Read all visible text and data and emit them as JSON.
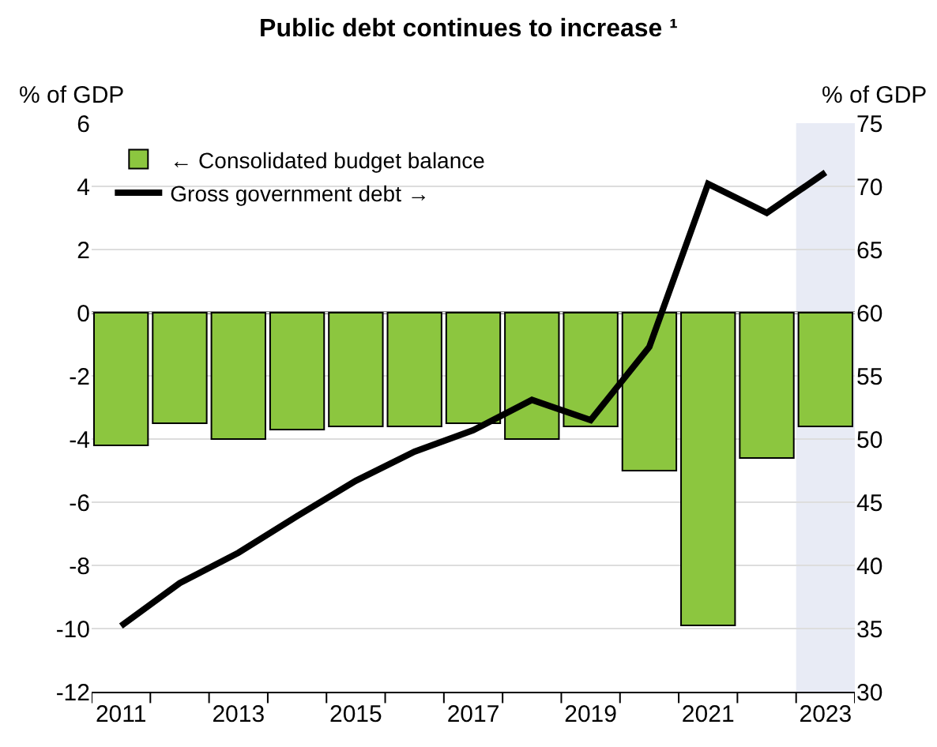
{
  "chart_data": {
    "type": "bar",
    "title": "Public debt continues to increase ¹",
    "ylabel": "% of GDP",
    "y2label": "% of GDP",
    "categories": [
      "2011",
      null,
      "2013",
      null,
      "2015",
      null,
      "2017",
      null,
      "2019",
      null,
      "2021",
      null,
      "2023"
    ],
    "series": [
      {
        "name": "← Consolidated budget balance",
        "color": "#8cc63f",
        "values": [
          -4.2,
          -3.5,
          -4.0,
          -3.7,
          -3.6,
          -3.6,
          -3.5,
          -4.0,
          -3.6,
          -5.0,
          -9.9,
          -4.6,
          -3.6
        ]
      },
      {
        "name": "Gross government debt →",
        "type": "line",
        "axis": "y2",
        "color": "#000000",
        "values": [
          35.2,
          38.6,
          41.0,
          43.9,
          46.7,
          49.0,
          50.7,
          53.1,
          51.5,
          57.3,
          70.2,
          67.9,
          71.1
        ]
      }
    ],
    "ylim": [
      -12,
      6
    ],
    "yticks": [
      -12,
      -10,
      -8,
      -6,
      -4,
      -2,
      0,
      2,
      4,
      6
    ],
    "y2lim": [
      30,
      75
    ],
    "y2ticks": [
      30,
      35,
      40,
      45,
      50,
      55,
      60,
      65,
      70,
      75
    ],
    "bands": [
      {
        "axis": "x",
        "from": "2023",
        "to": "2023",
        "color": "#e8ebf5"
      }
    ],
    "grid": "y",
    "legend": "top left",
    "marker": "none",
    "line_style": "solid"
  }
}
